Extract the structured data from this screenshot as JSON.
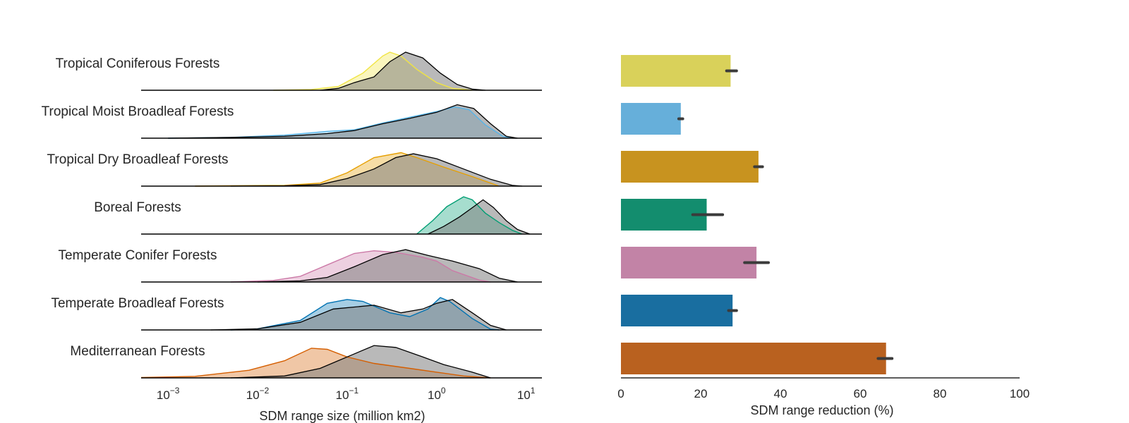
{
  "figure": {
    "panel_titles": []
  },
  "chart_data": [
    {
      "type": "ridgeline",
      "xlabel": "SDM range size (million km2)",
      "x_scale": "log",
      "xlim": [
        0.0005,
        15
      ],
      "x_ticks": [
        {
          "value": 0.001,
          "base": "10",
          "exp": "−3"
        },
        {
          "value": 0.01,
          "base": "10",
          "exp": "−2"
        },
        {
          "value": 0.1,
          "base": "10",
          "exp": "−1"
        },
        {
          "value": 1,
          "base": "10",
          "exp": "0"
        },
        {
          "value": 10,
          "base": "10",
          "exp": "1"
        }
      ],
      "reference_color": "#808080",
      "series": [
        {
          "name": "Tropical Coniferous Forests",
          "color": "#F0E442",
          "colored": [
            [
              0.015,
              0
            ],
            [
              0.04,
              0.02
            ],
            [
              0.08,
              0.1
            ],
            [
              0.15,
              0.45
            ],
            [
              0.25,
              0.9
            ],
            [
              0.3,
              1.0
            ],
            [
              0.4,
              0.9
            ],
            [
              0.6,
              0.55
            ],
            [
              1.0,
              0.2
            ],
            [
              1.5,
              0.05
            ],
            [
              2.5,
              0
            ]
          ],
          "reference": [
            [
              0.05,
              0
            ],
            [
              0.08,
              0.05
            ],
            [
              0.12,
              0.2
            ],
            [
              0.2,
              0.35
            ],
            [
              0.3,
              0.75
            ],
            [
              0.45,
              1.0
            ],
            [
              0.7,
              0.85
            ],
            [
              1.1,
              0.45
            ],
            [
              1.7,
              0.15
            ],
            [
              2.5,
              0.03
            ],
            [
              3.5,
              0
            ]
          ]
        },
        {
          "name": "Tropical Moist Broadleaf Forests",
          "color": "#56B4E9",
          "colored": [
            [
              0.001,
              0
            ],
            [
              0.005,
              0.02
            ],
            [
              0.02,
              0.08
            ],
            [
              0.06,
              0.18
            ],
            [
              0.12,
              0.22
            ],
            [
              0.25,
              0.4
            ],
            [
              0.5,
              0.55
            ],
            [
              1.0,
              0.7
            ],
            [
              1.6,
              0.82
            ],
            [
              2.3,
              0.75
            ],
            [
              3.5,
              0.35
            ],
            [
              5.5,
              0.05
            ],
            [
              7,
              0
            ]
          ],
          "reference": [
            [
              0.001,
              0
            ],
            [
              0.005,
              0.02
            ],
            [
              0.02,
              0.05
            ],
            [
              0.06,
              0.12
            ],
            [
              0.12,
              0.2
            ],
            [
              0.25,
              0.38
            ],
            [
              0.5,
              0.52
            ],
            [
              1.0,
              0.68
            ],
            [
              1.7,
              0.88
            ],
            [
              2.6,
              0.78
            ],
            [
              4,
              0.38
            ],
            [
              6,
              0.05
            ],
            [
              8,
              0
            ]
          ]
        },
        {
          "name": "Tropical Dry Broadleaf Forests",
          "color": "#E69F00",
          "colored": [
            [
              0.002,
              0
            ],
            [
              0.005,
              0.01
            ],
            [
              0.02,
              0.02
            ],
            [
              0.05,
              0.08
            ],
            [
              0.1,
              0.35
            ],
            [
              0.2,
              0.75
            ],
            [
              0.4,
              0.88
            ],
            [
              0.6,
              0.75
            ],
            [
              1.2,
              0.5
            ],
            [
              2.5,
              0.25
            ],
            [
              5,
              0
            ]
          ],
          "reference": [
            [
              0.005,
              0
            ],
            [
              0.02,
              0.01
            ],
            [
              0.05,
              0.04
            ],
            [
              0.1,
              0.2
            ],
            [
              0.2,
              0.45
            ],
            [
              0.35,
              0.75
            ],
            [
              0.55,
              0.85
            ],
            [
              1.0,
              0.72
            ],
            [
              2.0,
              0.45
            ],
            [
              4,
              0.18
            ],
            [
              7,
              0.02
            ],
            [
              9,
              0
            ]
          ]
        },
        {
          "name": "Boreal Forests",
          "color": "#009E73",
          "colored": [
            [
              0.6,
              0
            ],
            [
              0.9,
              0.35
            ],
            [
              1.3,
              0.72
            ],
            [
              2.0,
              0.98
            ],
            [
              2.5,
              0.9
            ],
            [
              3.5,
              0.55
            ],
            [
              5,
              0.3
            ],
            [
              7,
              0.1
            ],
            [
              9,
              0
            ]
          ],
          "reference": [
            [
              0.8,
              0
            ],
            [
              1.2,
              0.2
            ],
            [
              1.8,
              0.45
            ],
            [
              2.6,
              0.72
            ],
            [
              3.3,
              0.9
            ],
            [
              4.3,
              0.7
            ],
            [
              6,
              0.35
            ],
            [
              8,
              0.12
            ],
            [
              11,
              0
            ]
          ]
        },
        {
          "name": "Temperate Conifer Forests",
          "color": "#CC79A7",
          "colored": [
            [
              0.005,
              0
            ],
            [
              0.015,
              0.04
            ],
            [
              0.03,
              0.15
            ],
            [
              0.06,
              0.45
            ],
            [
              0.12,
              0.75
            ],
            [
              0.2,
              0.82
            ],
            [
              0.35,
              0.78
            ],
            [
              0.7,
              0.65
            ],
            [
              1.0,
              0.55
            ],
            [
              1.5,
              0.3
            ],
            [
              3,
              0.05
            ],
            [
              4,
              0
            ]
          ],
          "reference": [
            [
              0.01,
              0
            ],
            [
              0.03,
              0.03
            ],
            [
              0.06,
              0.12
            ],
            [
              0.12,
              0.4
            ],
            [
              0.25,
              0.72
            ],
            [
              0.45,
              0.85
            ],
            [
              0.8,
              0.7
            ],
            [
              1.5,
              0.55
            ],
            [
              3,
              0.35
            ],
            [
              5,
              0.1
            ],
            [
              8,
              0
            ]
          ]
        },
        {
          "name": "Temperate Broadleaf Forests",
          "color": "#0072B2",
          "colored": [
            [
              0.005,
              0
            ],
            [
              0.01,
              0.03
            ],
            [
              0.03,
              0.25
            ],
            [
              0.06,
              0.7
            ],
            [
              0.1,
              0.8
            ],
            [
              0.15,
              0.75
            ],
            [
              0.3,
              0.45
            ],
            [
              0.5,
              0.35
            ],
            [
              0.8,
              0.55
            ],
            [
              1.1,
              0.85
            ],
            [
              1.4,
              0.75
            ],
            [
              2.5,
              0.3
            ],
            [
              4,
              0.02
            ],
            [
              5,
              0
            ]
          ],
          "reference": [
            [
              0.003,
              0
            ],
            [
              0.01,
              0.03
            ],
            [
              0.03,
              0.2
            ],
            [
              0.07,
              0.55
            ],
            [
              0.2,
              0.65
            ],
            [
              0.4,
              0.45
            ],
            [
              0.7,
              0.55
            ],
            [
              1.0,
              0.7
            ],
            [
              1.5,
              0.8
            ],
            [
              2.5,
              0.45
            ],
            [
              4,
              0.12
            ],
            [
              6,
              0
            ]
          ]
        },
        {
          "name": "Mediterranean Forests",
          "color": "#D55E00",
          "colored": [
            [
              0.0005,
              0.01
            ],
            [
              0.002,
              0.04
            ],
            [
              0.008,
              0.2
            ],
            [
              0.02,
              0.45
            ],
            [
              0.04,
              0.78
            ],
            [
              0.06,
              0.75
            ],
            [
              0.1,
              0.55
            ],
            [
              0.2,
              0.38
            ],
            [
              0.5,
              0.25
            ],
            [
              1,
              0.15
            ],
            [
              2,
              0.05
            ],
            [
              4,
              0
            ]
          ],
          "reference": [
            [
              0.005,
              0
            ],
            [
              0.02,
              0.05
            ],
            [
              0.05,
              0.25
            ],
            [
              0.1,
              0.55
            ],
            [
              0.2,
              0.85
            ],
            [
              0.35,
              0.8
            ],
            [
              0.7,
              0.55
            ],
            [
              1.2,
              0.35
            ],
            [
              2.5,
              0.15
            ],
            [
              4,
              0
            ]
          ]
        }
      ]
    },
    {
      "type": "bar",
      "orientation": "horizontal",
      "xlabel": "SDM range reduction (%)",
      "xlim": [
        0,
        100
      ],
      "x_ticks": [
        "0",
        "20",
        "40",
        "60",
        "80",
        "100"
      ],
      "categories": [
        "Tropical Coniferous Forests",
        "Tropical Moist Broadleaf Forests",
        "Tropical Dry Broadleaf Forests",
        "Boreal Forests",
        "Temperate Conifer Forests",
        "Temperate Broadleaf Forests",
        "Mediterranean Forests"
      ],
      "values": [
        27.5,
        15,
        34.5,
        21.5,
        34,
        28,
        66.5
      ],
      "error": [
        [
          26.5,
          29
        ],
        [
          14.5,
          15.5
        ],
        [
          33.5,
          35.5
        ],
        [
          18,
          25.5
        ],
        [
          31,
          37
        ],
        [
          27,
          29
        ],
        [
          64.5,
          68
        ]
      ],
      "colors": [
        "#D9D15A",
        "#66AFDA",
        "#C8931F",
        "#138D6E",
        "#C283A6",
        "#196EA0",
        "#B9611F"
      ]
    }
  ]
}
